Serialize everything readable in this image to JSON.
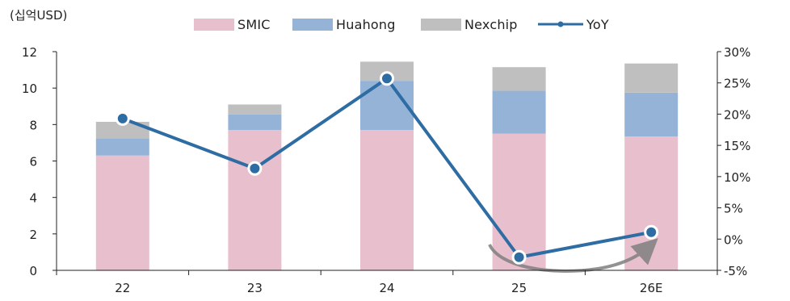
{
  "unit_label": "(십억USD)",
  "legend": {
    "smic": "SMIC",
    "huahong": "Huahong",
    "nexchip": "Nexchip",
    "yoy": "YoY"
  },
  "colors": {
    "smic": "#e8bfcc",
    "huahong": "#95b3d7",
    "nexchip": "#bfbfbf",
    "yoy": "#2e6ca4",
    "arrow": "#808080",
    "axis": "#222222"
  },
  "chart_data": {
    "type": "bar",
    "stacked": true,
    "categories": [
      "22",
      "23",
      "24",
      "25",
      "26E"
    ],
    "series": [
      {
        "name": "SMIC",
        "values": [
          6.3,
          7.7,
          7.7,
          7.5,
          7.35
        ]
      },
      {
        "name": "Huahong",
        "values": [
          0.95,
          0.85,
          2.7,
          2.35,
          2.4
        ]
      },
      {
        "name": "Nexchip",
        "values": [
          0.9,
          0.55,
          1.05,
          1.3,
          1.6
        ]
      }
    ],
    "line_series": {
      "name": "YoY",
      "axis": "right",
      "values": [
        19.3,
        11.3,
        25.7,
        -2.9,
        1.1
      ]
    },
    "y_left": {
      "min": 0,
      "max": 12,
      "ticks": [
        0,
        2,
        4,
        6,
        8,
        10,
        12
      ]
    },
    "y_right": {
      "min": -5,
      "max": 30,
      "ticks": [
        -5,
        0,
        5,
        10,
        15,
        20,
        25,
        30
      ],
      "tick_labels": [
        "-5%",
        "0%",
        "5%",
        "10%",
        "15%",
        "20%",
        "25%",
        "30%"
      ]
    },
    "annotation": "curved arrow from 25 to 26E",
    "grid": false,
    "legend_position": "top"
  }
}
